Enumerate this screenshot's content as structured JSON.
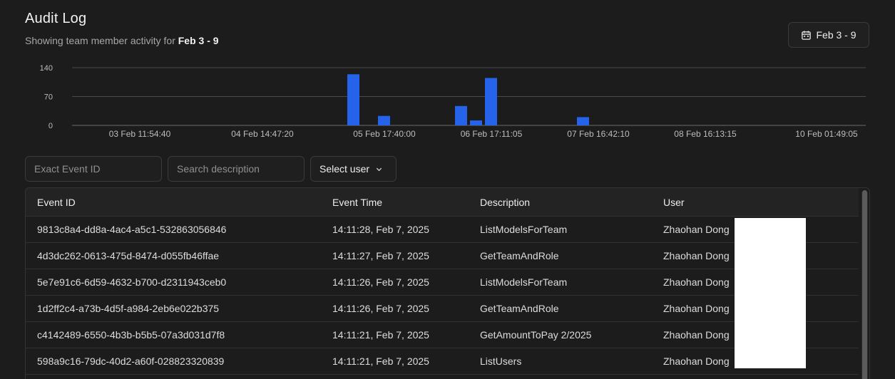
{
  "header": {
    "title": "Audit Log",
    "subtitle_prefix": "Showing team member activity for ",
    "subtitle_range": "Feb 3 - 9",
    "date_button_label": "Feb 3 - 9"
  },
  "chart_data": {
    "type": "bar",
    "y_ticks": [
      "140",
      "70",
      "0"
    ],
    "ylim": [
      0,
      140
    ],
    "x_tick_labels": [
      "03 Feb 11:54:40",
      "04 Feb 14:47:20",
      "05 Feb 17:40:00",
      "06 Feb 17:11:05",
      "07 Feb 16:42:10",
      "08 Feb 16:13:15",
      "10 Feb 01:49:05"
    ],
    "bars": [
      {
        "near": "05 Feb",
        "value": 124
      },
      {
        "near": "05 Feb",
        "value": 23
      },
      {
        "near": "06 Feb",
        "value": 47
      },
      {
        "near": "06 Feb",
        "value": 12
      },
      {
        "near": "06 Feb",
        "value": 115
      },
      {
        "near": "07 Feb",
        "value": 20
      }
    ],
    "color": "#2563eb",
    "grid": true
  },
  "filters": {
    "event_id_placeholder": "Exact Event ID",
    "description_placeholder": "Search description",
    "select_user_label": "Select user"
  },
  "table": {
    "columns": [
      "Event ID",
      "Event Time",
      "Description",
      "User"
    ],
    "rows": [
      [
        "9813c8a4-dd8a-4ac4-a5c1-532863056846",
        "14:11:28, Feb 7, 2025",
        "ListModelsForTeam",
        "Zhaohan Dong"
      ],
      [
        "4d3dc262-0613-475d-8474-d055fb46ffae",
        "14:11:27, Feb 7, 2025",
        "GetTeamAndRole",
        "Zhaohan Dong"
      ],
      [
        "5e7e91c6-6d59-4632-b700-d2311943ceb0",
        "14:11:26, Feb 7, 2025",
        "ListModelsForTeam",
        "Zhaohan Dong"
      ],
      [
        "1d2ff2c4-a73b-4d5f-a984-2eb6e022b375",
        "14:11:26, Feb 7, 2025",
        "GetTeamAndRole",
        "Zhaohan Dong"
      ],
      [
        "c4142489-6550-4b3b-b5b5-07a3d031d7f8",
        "14:11:21, Feb 7, 2025",
        "GetAmountToPay 2/2025",
        "Zhaohan Dong"
      ],
      [
        "598a9c16-79dc-40d2-a60f-028823320839",
        "14:11:21, Feb 7, 2025",
        "ListUsers",
        "Zhaohan Dong"
      ]
    ]
  }
}
